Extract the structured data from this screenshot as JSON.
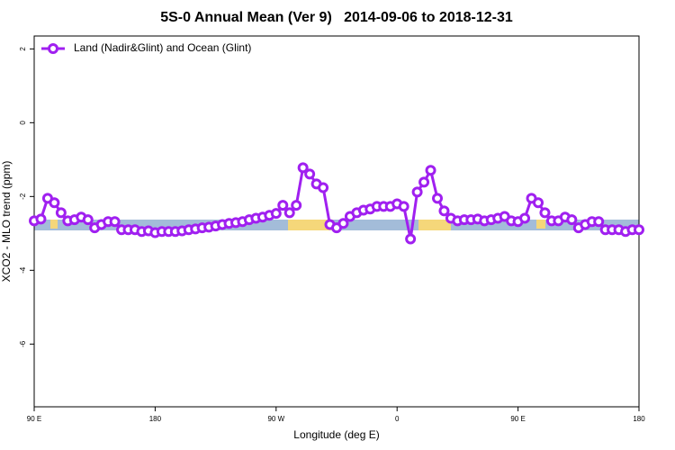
{
  "chart_data": {
    "type": "line",
    "title": "5S-0 Annual Mean (Ver 9)   2014-09-06 to 2018-12-31",
    "x_label": "Longitude (deg E)",
    "y_label": "XCO2 - MLO trend (ppm)",
    "xlim": [
      90,
      540
    ],
    "ylim": [
      -7.7,
      2.35
    ],
    "xticks": [
      {
        "value": 90,
        "label": "90 E"
      },
      {
        "value": 180,
        "label": "180"
      },
      {
        "value": 270,
        "label": "90 W"
      },
      {
        "value": 360,
        "label": "0"
      },
      {
        "value": 450,
        "label": "90 E"
      },
      {
        "value": 540,
        "label": "180"
      }
    ],
    "yticks": [
      -6,
      -4,
      -2,
      0,
      2
    ],
    "legend": "top-left",
    "x": [
      90,
      95,
      100,
      105,
      110,
      115,
      120,
      125,
      130,
      135,
      140,
      145,
      150,
      155,
      160,
      165,
      170,
      175,
      180,
      185,
      190,
      195,
      200,
      205,
      210,
      215,
      220,
      225,
      230,
      235,
      240,
      245,
      250,
      255,
      260,
      265,
      270,
      275,
      280,
      285,
      290,
      295,
      300,
      305,
      310,
      315,
      320,
      325,
      330,
      335,
      340,
      345,
      350,
      355,
      360,
      365,
      370,
      375,
      380,
      385,
      390,
      395,
      400,
      405,
      410,
      415,
      420,
      425,
      430,
      435,
      440,
      445,
      450,
      455,
      460,
      465,
      470,
      475,
      480,
      485,
      490,
      495,
      500,
      505,
      510,
      515,
      520,
      525,
      530,
      535,
      540
    ],
    "series": [
      {
        "name": "Land (Nadir&Glint) and Ocean (Glint)",
        "color": "#a020f0",
        "values": [
          -2.66,
          -2.61,
          -2.05,
          -2.17,
          -2.44,
          -2.66,
          -2.63,
          -2.56,
          -2.63,
          -2.85,
          -2.76,
          -2.68,
          -2.68,
          -2.9,
          -2.9,
          -2.9,
          -2.95,
          -2.93,
          -2.98,
          -2.95,
          -2.95,
          -2.95,
          -2.93,
          -2.9,
          -2.88,
          -2.85,
          -2.83,
          -2.8,
          -2.76,
          -2.73,
          -2.71,
          -2.68,
          -2.63,
          -2.59,
          -2.56,
          -2.51,
          -2.46,
          -2.24,
          -2.44,
          -2.24,
          -1.22,
          -1.39,
          -1.66,
          -1.76,
          -2.76,
          -2.85,
          -2.73,
          -2.54,
          -2.44,
          -2.37,
          -2.34,
          -2.27,
          -2.27,
          -2.27,
          -2.2,
          -2.27,
          -3.15,
          -1.88,
          -1.61,
          -1.29,
          -2.05,
          -2.39,
          -2.59,
          -2.66,
          -2.63,
          -2.63,
          -2.61,
          -2.66,
          -2.63,
          -2.59,
          -2.54,
          -2.66,
          -2.68,
          -2.59,
          -2.05,
          -2.17,
          -2.44,
          -2.66,
          -2.66,
          -2.56,
          -2.63,
          -2.85,
          -2.76,
          -2.68,
          -2.68,
          -2.9,
          -2.9,
          -2.9,
          -2.95,
          -2.9,
          -2.9
        ]
      }
    ]
  }
}
